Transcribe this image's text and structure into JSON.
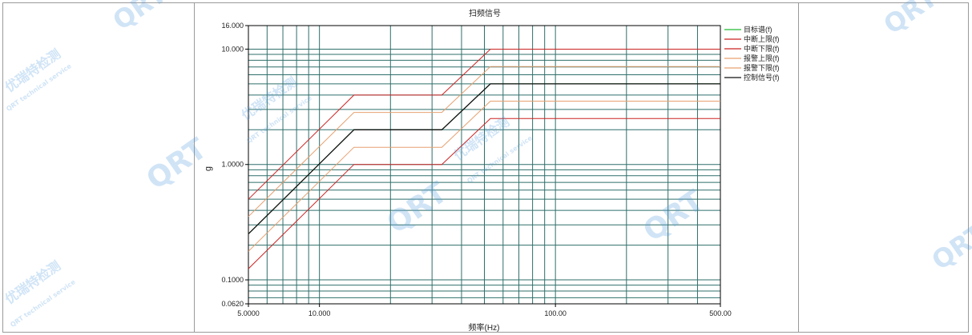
{
  "chart_data": {
    "type": "line",
    "title": "扫频信号",
    "xlabel": "频率(Hz)",
    "ylabel": "g",
    "xscale": "log",
    "yscale": "log",
    "xlim": [
      5,
      500
    ],
    "ylim": [
      0.062,
      16
    ],
    "x_tick_labels": [
      "5.0000",
      "10.000",
      "100.00",
      "500.00"
    ],
    "y_tick_labels": [
      "16.000",
      "10.000",
      "1.0000",
      "0.1000",
      "0.0620"
    ],
    "grid": true,
    "legend_position": "right",
    "series": [
      {
        "name": "目标谱(f)",
        "color": "#22bb33",
        "x": [
          5,
          14,
          33,
          53,
          500
        ],
        "y": [
          0.25,
          2,
          2,
          5,
          5
        ]
      },
      {
        "name": "中断上限(f)",
        "color": "#cc2222",
        "x": [
          5,
          14,
          33,
          53,
          500
        ],
        "y": [
          0.5,
          4,
          4,
          10,
          10
        ]
      },
      {
        "name": "中断下限(f)",
        "color": "#cc2222",
        "x": [
          5,
          14,
          33,
          53,
          500
        ],
        "y": [
          0.125,
          1,
          1,
          2.5,
          2.5
        ]
      },
      {
        "name": "报警上限(f)",
        "color": "#e6a070",
        "x": [
          5,
          14,
          33,
          53,
          500
        ],
        "y": [
          0.354,
          2.83,
          2.83,
          7.07,
          7.07
        ]
      },
      {
        "name": "报警下限(f)",
        "color": "#e6a070",
        "x": [
          5,
          14,
          33,
          53,
          500
        ],
        "y": [
          0.177,
          1.41,
          1.41,
          3.54,
          3.54
        ]
      },
      {
        "name": "控制信号(f)",
        "color": "#111111",
        "x": [
          5,
          14,
          33,
          53,
          500
        ],
        "y": [
          0.25,
          2,
          2,
          5,
          5
        ]
      }
    ]
  },
  "watermark": {
    "text_cn": "优瑞特检测",
    "text_en": "QRT technical service",
    "logo": "QRT"
  }
}
